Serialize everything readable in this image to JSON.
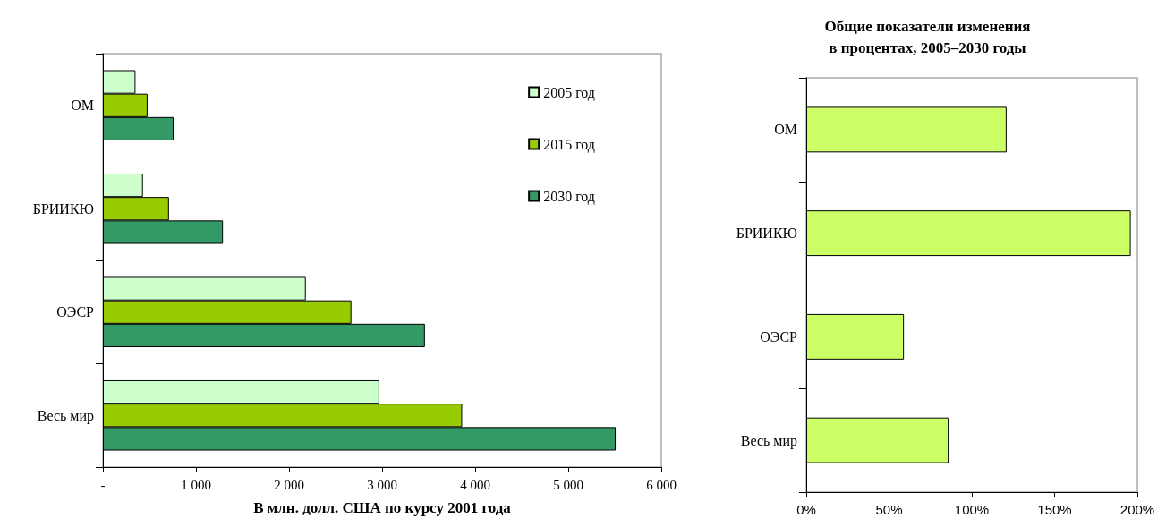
{
  "chart_data": [
    {
      "type": "bar",
      "orientation": "horizontal",
      "xlabel": "В млн. долл. США по курсу 2001 года",
      "categories": [
        "ОМ",
        "БРИИКЮ",
        "ОЭСР",
        "Весь мир"
      ],
      "series": [
        {
          "name": "2005 год",
          "color": "#ccffcc",
          "values": [
            350,
            430,
            2180,
            2970
          ]
        },
        {
          "name": "2015 год",
          "color": "#99cc00",
          "values": [
            480,
            710,
            2670,
            3860
          ]
        },
        {
          "name": "2030 год",
          "color": "#339966",
          "values": [
            760,
            1290,
            3460,
            5510
          ]
        }
      ],
      "xlim": [
        0,
        6000
      ],
      "xticks": [
        {
          "value": 0,
          "label": "-"
        },
        {
          "value": 1000,
          "label": "1 000"
        },
        {
          "value": 2000,
          "label": "2 000"
        },
        {
          "value": 3000,
          "label": "3 000"
        },
        {
          "value": 4000,
          "label": "4 000"
        },
        {
          "value": 5000,
          "label": "5 000"
        },
        {
          "value": 6000,
          "label": "6 000"
        }
      ],
      "legend": "top right",
      "grid": false
    },
    {
      "type": "bar",
      "orientation": "horizontal",
      "title": "Общие показатели изменения\nв процентах, 2005–2030 годы",
      "categories": [
        "ОМ",
        "БРИИКЮ",
        "ОЭСР",
        "Весь мир"
      ],
      "values": [
        121,
        196,
        59,
        86
      ],
      "color": "#ccff66",
      "xlim": [
        0,
        200
      ],
      "xticks": [
        {
          "value": 0,
          "label": "0%"
        },
        {
          "value": 50,
          "label": "50%"
        },
        {
          "value": 100,
          "label": "100%"
        },
        {
          "value": 150,
          "label": "150%"
        },
        {
          "value": 200,
          "label": "200%"
        }
      ],
      "legend": false,
      "grid": false
    }
  ]
}
